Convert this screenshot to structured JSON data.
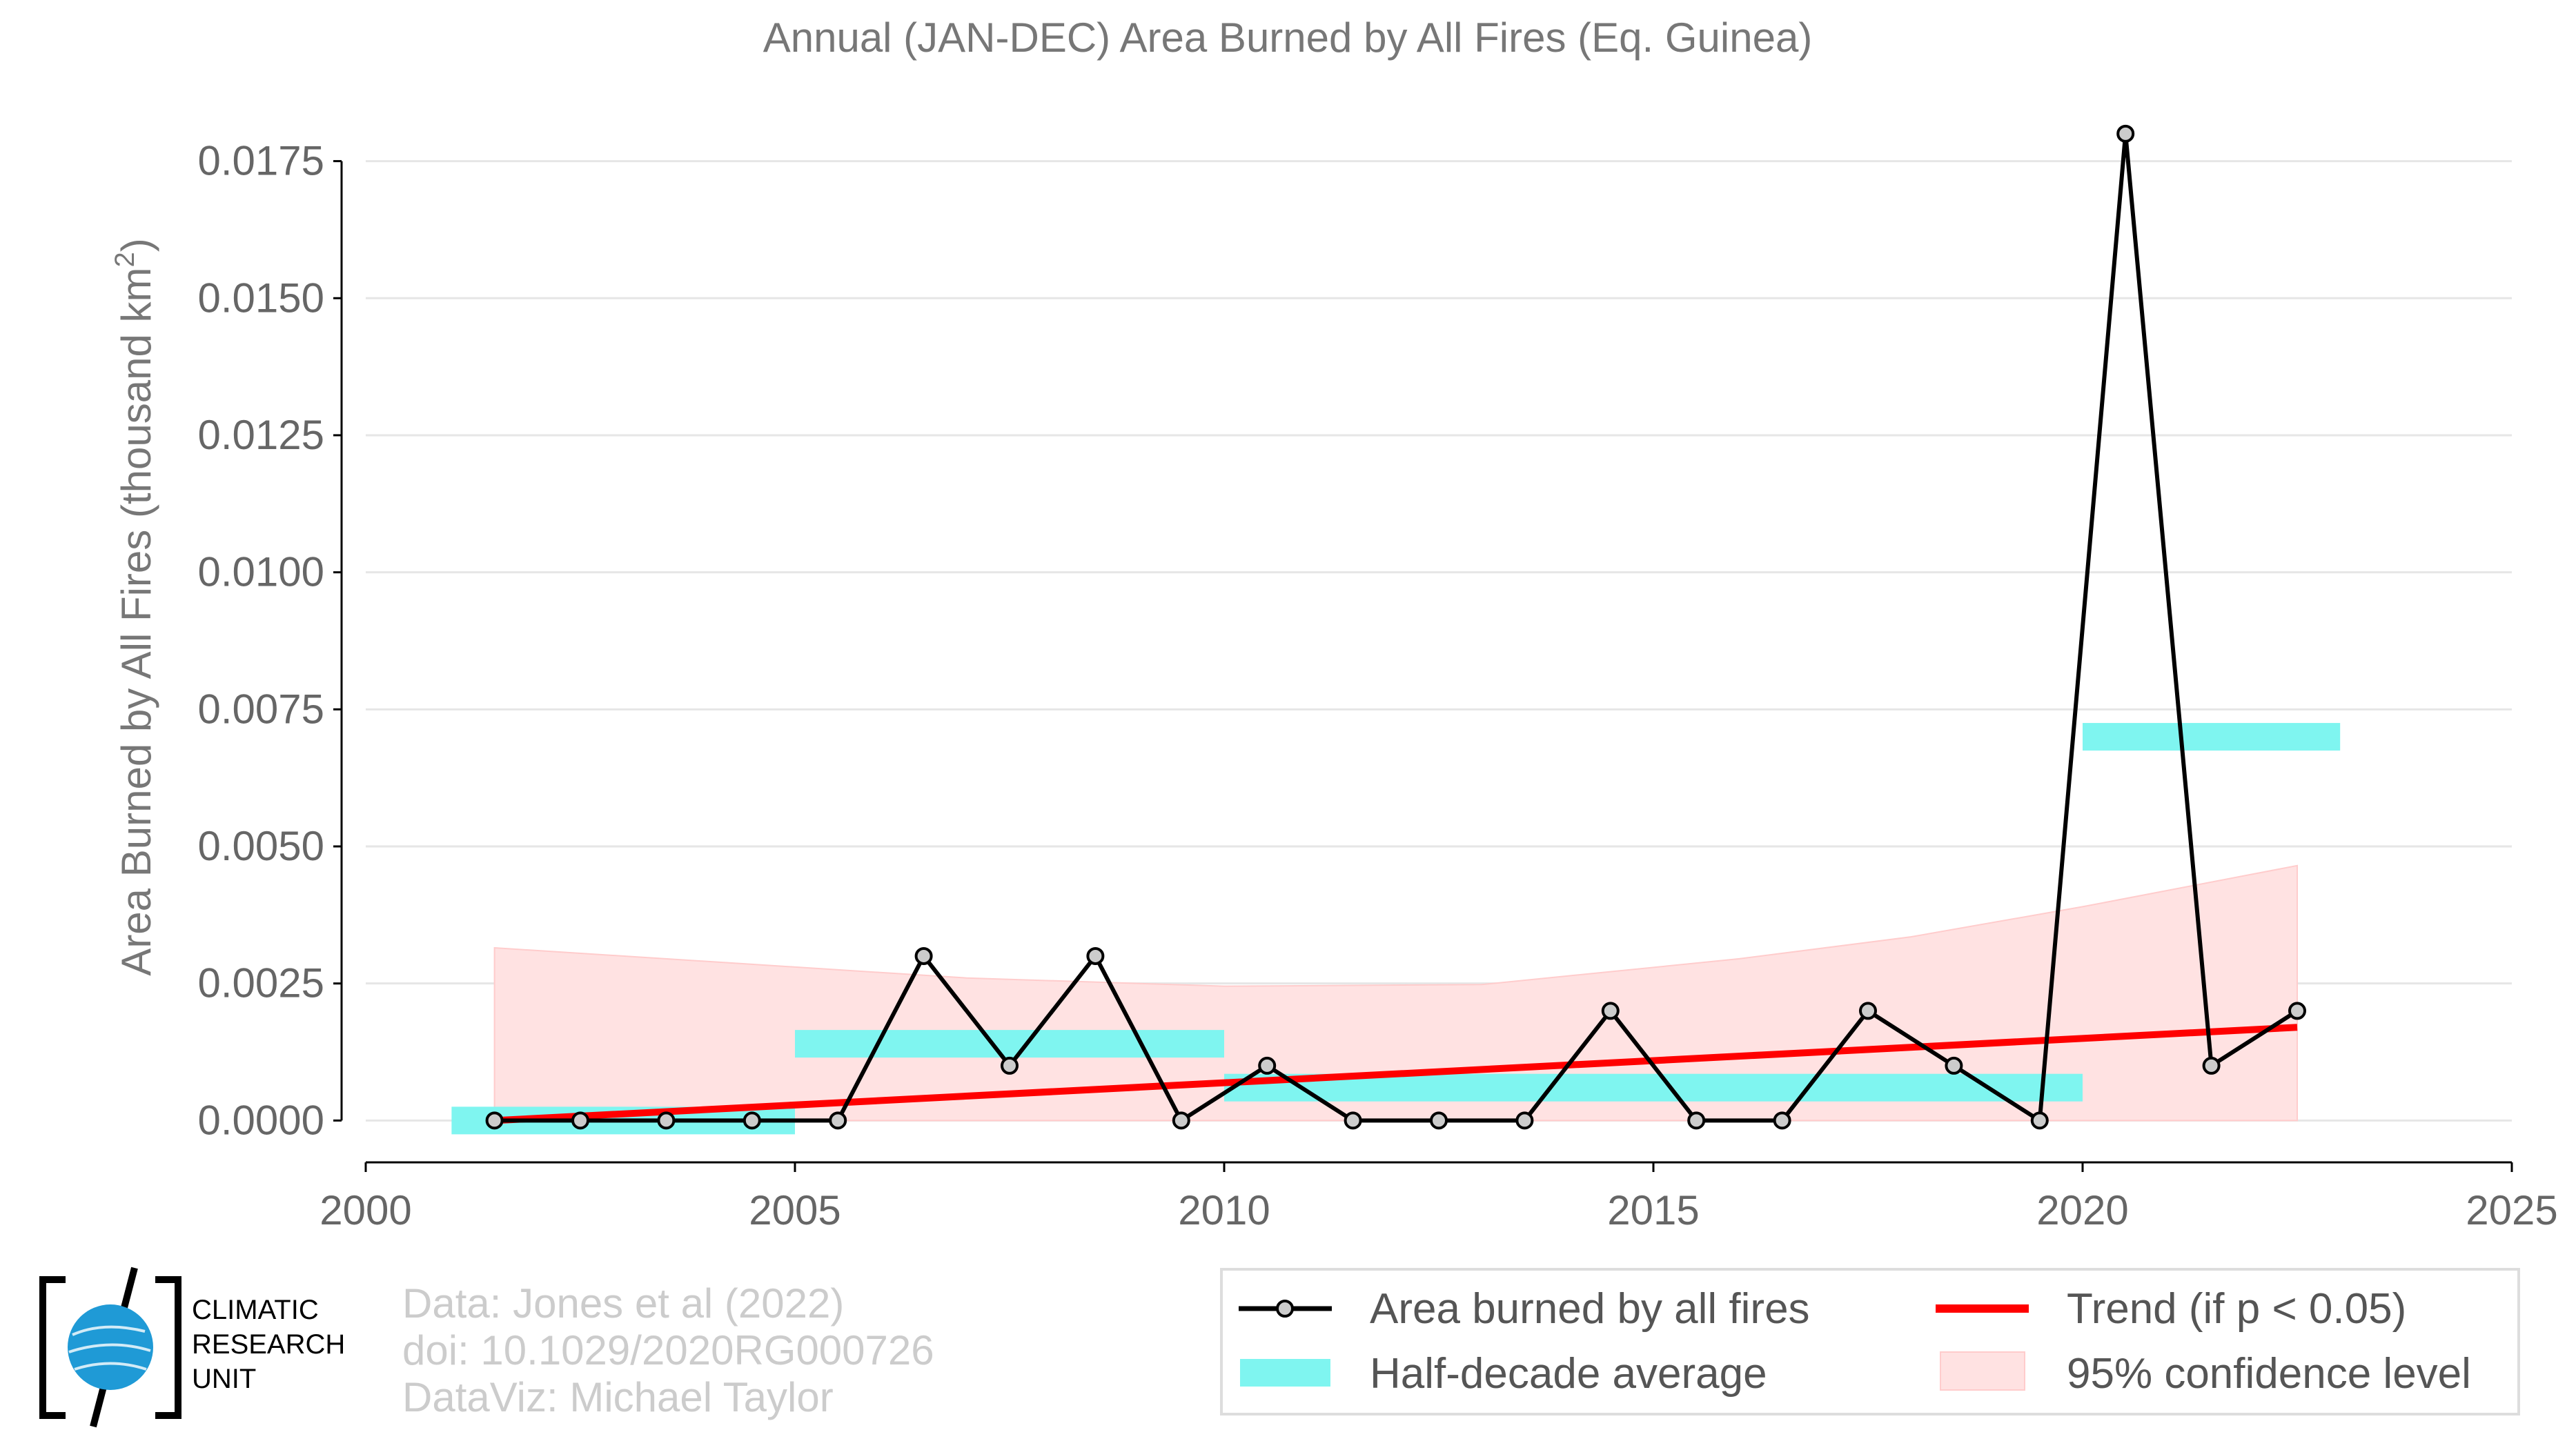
{
  "chart_data": {
    "type": "line",
    "title": "Annual (JAN-DEC) Area Burned by All Fires (Eq. Guinea)",
    "ylabel": "Area Burned by All Fires (thousand km",
    "ylabel_sup": "2",
    "ylabel_close": ")",
    "xlim": [
      2000,
      2025
    ],
    "ylim": [
      -0.0007,
      0.0183
    ],
    "x_ticks": [
      "2000",
      "2005",
      "2010",
      "2015",
      "2020",
      "2025"
    ],
    "y_ticks": [
      "0.0000",
      "0.0025",
      "0.0050",
      "0.0075",
      "0.0100",
      "0.0125",
      "0.0150",
      "0.0175"
    ],
    "series": [
      {
        "name": "Area burned by all fires",
        "color": "#000000",
        "x": [
          2001.5,
          2002.5,
          2003.5,
          2004.5,
          2005.5,
          2006.5,
          2007.5,
          2008.5,
          2009.5,
          2010.5,
          2011.5,
          2012.5,
          2013.5,
          2014.5,
          2015.5,
          2016.5,
          2017.5,
          2018.5,
          2019.5,
          2020.5,
          2021.5,
          2022.5
        ],
        "y": [
          0.0,
          0.0,
          0.0,
          0.0,
          0.0,
          0.003,
          0.001,
          0.003,
          0.0,
          0.001,
          0.0,
          0.0,
          0.0,
          0.002,
          0.0,
          0.0,
          0.002,
          0.001,
          0.0,
          0.018,
          0.001,
          0.002
        ]
      }
    ],
    "half_decade_average": {
      "name": "Half-decade average",
      "color": "#7ff5f0",
      "segments": [
        {
          "x0": 2001,
          "x1": 2005,
          "y": 0.0
        },
        {
          "x0": 2005,
          "x1": 2010,
          "y": 0.0014
        },
        {
          "x0": 2010,
          "x1": 2020,
          "y": 0.0006
        },
        {
          "x0": 2020,
          "x1": 2023,
          "y": 0.007
        }
      ]
    },
    "trend": {
      "name": "Trend (if p < 0.05)",
      "color": "#ff0000",
      "x": [
        2001.5,
        2022.5
      ],
      "y": [
        0.0,
        0.0017
      ]
    },
    "confidence_band": {
      "name": "95% confidence level",
      "color": "#ffe2e2",
      "x": [
        2001.5,
        2004,
        2007,
        2010,
        2013,
        2016,
        2018,
        2020,
        2022.5
      ],
      "upper": [
        0.00315,
        0.0029,
        0.0026,
        0.00245,
        0.00248,
        0.00295,
        0.00335,
        0.0039,
        0.00465
      ],
      "lower": [
        0.0,
        0.0,
        0.0,
        0.0,
        0.0,
        0.0,
        0.0,
        0.0,
        0.0
      ]
    },
    "legend_position": "bottom-right",
    "grid": true
  },
  "legend": {
    "items": [
      {
        "label": "Area burned by all fires"
      },
      {
        "label": "Trend (if p < 0.05)"
      },
      {
        "label": "Half-decade average"
      },
      {
        "label": "95% confidence level"
      }
    ]
  },
  "credits": {
    "line1": "Data: Jones et al (2022)",
    "line2": "doi: 10.1029/2020RG000726",
    "line3": "DataViz: Michael Taylor"
  },
  "logo": {
    "line1": "CLIMATIC",
    "line2": "RESEARCH",
    "line3": "UNIT"
  }
}
